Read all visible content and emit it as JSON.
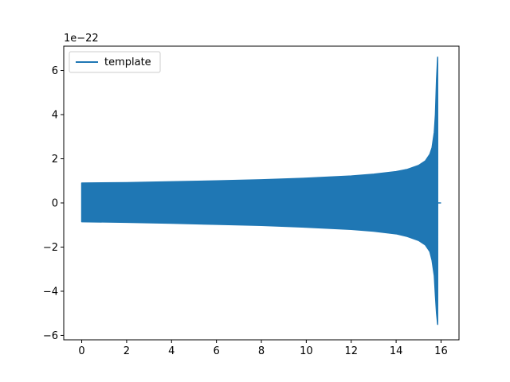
{
  "chart_data": {
    "type": "line",
    "title": "",
    "xlabel": "",
    "ylabel": "",
    "y_offset_label": "1e−22",
    "xlim": [
      -0.8,
      16.8
    ],
    "ylim": [
      -6.2,
      7.1
    ],
    "x_ticks": [
      0,
      2,
      4,
      6,
      8,
      10,
      12,
      14,
      16
    ],
    "x_tick_labels": [
      "0",
      "2",
      "4",
      "6",
      "8",
      "10",
      "12",
      "14",
      "16"
    ],
    "y_ticks": [
      -6,
      -4,
      -2,
      0,
      2,
      4,
      6
    ],
    "y_tick_labels": [
      "−6",
      "−4",
      "−2",
      "0",
      "2",
      "4",
      "6"
    ],
    "grid": false,
    "legend": {
      "placement": "top-left",
      "entries": [
        "template"
      ]
    },
    "series": [
      {
        "name": "template",
        "color": "#1f77b4",
        "description_units": "strain x 1e-22",
        "start_x": 0.0,
        "merger_x": 15.85,
        "end_x": 16.0,
        "upper_envelope": {
          "x": [
            0.0,
            2,
            4,
            6,
            8,
            10,
            12,
            13,
            14,
            14.5,
            15.0,
            15.3,
            15.5,
            15.6,
            15.7,
            15.75,
            15.8,
            15.85
          ],
          "y": [
            0.9,
            0.92,
            0.96,
            1.0,
            1.05,
            1.12,
            1.22,
            1.3,
            1.42,
            1.52,
            1.7,
            1.9,
            2.2,
            2.5,
            3.2,
            4.0,
            5.6,
            6.6
          ]
        },
        "lower_envelope": {
          "x": [
            0.0,
            2,
            4,
            6,
            8,
            10,
            12,
            13,
            14,
            14.5,
            15.0,
            15.3,
            15.5,
            15.6,
            15.7,
            15.75,
            15.8,
            15.85
          ],
          "y": [
            -0.85,
            -0.88,
            -0.92,
            -0.97,
            -1.02,
            -1.1,
            -1.2,
            -1.28,
            -1.4,
            -1.52,
            -1.7,
            -1.9,
            -2.2,
            -2.6,
            -3.3,
            -4.2,
            -5.0,
            -5.5
          ]
        },
        "post_merger": {
          "x": [
            15.9,
            16.0
          ],
          "y": [
            0,
            0
          ]
        }
      }
    ]
  }
}
